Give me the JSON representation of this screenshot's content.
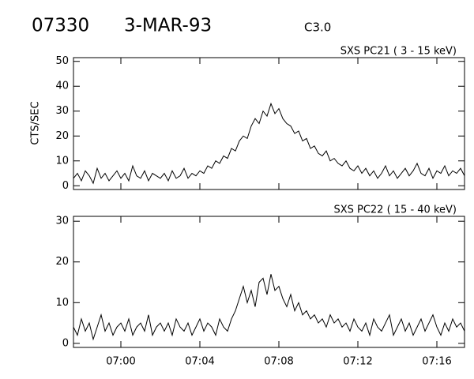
{
  "header": {
    "id": "07330",
    "date": "3-MAR-93",
    "class": "C3.0"
  },
  "chart_data": [
    {
      "type": "line",
      "title": "SXS PC21  (  3 - 15 keV)",
      "y_label": "CTS/SEC",
      "color": "#000000",
      "xlim": [
        -2.4,
        17.4
      ],
      "ylim": [
        -1.5,
        51.5
      ],
      "yticks": [
        0,
        10,
        20,
        30,
        40,
        50
      ],
      "x": [
        -2.4,
        -2.2,
        -2.0,
        -1.8,
        -1.6,
        -1.4,
        -1.2,
        -1.0,
        -0.8,
        -0.6,
        -0.4,
        -0.2,
        0,
        0.2,
        0.4,
        0.6,
        0.8,
        1.0,
        1.2,
        1.4,
        1.6,
        1.8,
        2.0,
        2.2,
        2.4,
        2.6,
        2.8,
        3.0,
        3.2,
        3.4,
        3.6,
        3.8,
        4.0,
        4.2,
        4.4,
        4.6,
        4.8,
        5.0,
        5.2,
        5.4,
        5.6,
        5.8,
        6.0,
        6.2,
        6.4,
        6.6,
        6.8,
        7.0,
        7.2,
        7.4,
        7.6,
        7.8,
        8.0,
        8.2,
        8.4,
        8.6,
        8.8,
        9.0,
        9.2,
        9.4,
        9.6,
        9.8,
        10.0,
        10.2,
        10.4,
        10.6,
        10.8,
        11.0,
        11.2,
        11.4,
        11.6,
        11.8,
        12.0,
        12.2,
        12.4,
        12.6,
        12.8,
        13.0,
        13.2,
        13.4,
        13.6,
        13.8,
        14.0,
        14.2,
        14.4,
        14.6,
        14.8,
        15.0,
        15.2,
        15.4,
        15.6,
        15.8,
        16.0,
        16.2,
        16.4,
        16.6,
        16.8,
        17.0,
        17.2,
        17.4
      ],
      "values": [
        3,
        5,
        2,
        6,
        4,
        1,
        7,
        3,
        5,
        2,
        4,
        6,
        3,
        5,
        2,
        8,
        4,
        3,
        6,
        2,
        5,
        4,
        3,
        5,
        2,
        6,
        3,
        4,
        7,
        3,
        5,
        4,
        6,
        5,
        8,
        7,
        10,
        9,
        12,
        11,
        15,
        14,
        18,
        20,
        19,
        24,
        27,
        25,
        30,
        28,
        33,
        29,
        31,
        27,
        25,
        24,
        21,
        22,
        18,
        19,
        15,
        16,
        13,
        12,
        14,
        10,
        11,
        9,
        8,
        10,
        7,
        6,
        8,
        5,
        7,
        4,
        6,
        3,
        5,
        8,
        4,
        6,
        3,
        5,
        7,
        4,
        6,
        9,
        5,
        4,
        7,
        3,
        6,
        5,
        8,
        4,
        6,
        5,
        7,
        4
      ]
    },
    {
      "type": "line",
      "title": "SXS PC22  ( 15 - 40 keV)",
      "color": "#000000",
      "xlim": [
        -2.4,
        17.4
      ],
      "ylim": [
        -1,
        31.2
      ],
      "yticks": [
        0,
        10,
        20,
        30
      ],
      "xticks": [
        {
          "value": 0,
          "label": "07:00"
        },
        {
          "value": 4,
          "label": "07:04"
        },
        {
          "value": 8,
          "label": "07:08"
        },
        {
          "value": 12,
          "label": "07:12"
        },
        {
          "value": 16,
          "label": "07:16"
        }
      ],
      "x": [
        -2.4,
        -2.2,
        -2.0,
        -1.8,
        -1.6,
        -1.4,
        -1.2,
        -1.0,
        -0.8,
        -0.6,
        -0.4,
        -0.2,
        0,
        0.2,
        0.4,
        0.6,
        0.8,
        1.0,
        1.2,
        1.4,
        1.6,
        1.8,
        2.0,
        2.2,
        2.4,
        2.6,
        2.8,
        3.0,
        3.2,
        3.4,
        3.6,
        3.8,
        4.0,
        4.2,
        4.4,
        4.6,
        4.8,
        5.0,
        5.2,
        5.4,
        5.6,
        5.8,
        6.0,
        6.2,
        6.4,
        6.6,
        6.8,
        7.0,
        7.2,
        7.4,
        7.6,
        7.8,
        8.0,
        8.2,
        8.4,
        8.6,
        8.8,
        9.0,
        9.2,
        9.4,
        9.6,
        9.8,
        10.0,
        10.2,
        10.4,
        10.6,
        10.8,
        11.0,
        11.2,
        11.4,
        11.6,
        11.8,
        12.0,
        12.2,
        12.4,
        12.6,
        12.8,
        13.0,
        13.2,
        13.4,
        13.6,
        13.8,
        14.0,
        14.2,
        14.4,
        14.6,
        14.8,
        15.0,
        15.2,
        15.4,
        15.6,
        15.8,
        16.0,
        16.2,
        16.4,
        16.6,
        16.8,
        17.0,
        17.2,
        17.4
      ],
      "values": [
        4,
        2,
        6,
        3,
        5,
        1,
        4,
        7,
        3,
        5,
        2,
        4,
        5,
        3,
        6,
        2,
        4,
        5,
        3,
        7,
        2,
        4,
        5,
        3,
        5,
        2,
        6,
        4,
        3,
        5,
        2,
        4,
        6,
        3,
        5,
        4,
        2,
        6,
        4,
        3,
        6,
        8,
        11,
        14,
        10,
        13,
        9,
        15,
        16,
        12,
        17,
        13,
        14,
        11,
        9,
        12,
        8,
        10,
        7,
        8,
        6,
        7,
        5,
        6,
        4,
        7,
        5,
        6,
        4,
        5,
        3,
        6,
        4,
        3,
        5,
        2,
        6,
        4,
        3,
        5,
        7,
        2,
        4,
        6,
        3,
        5,
        2,
        4,
        6,
        3,
        5,
        7,
        4,
        2,
        5,
        3,
        6,
        4,
        5,
        3
      ]
    }
  ]
}
